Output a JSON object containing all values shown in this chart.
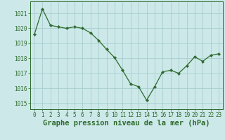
{
  "x": [
    0,
    1,
    2,
    3,
    4,
    5,
    6,
    7,
    8,
    9,
    10,
    11,
    12,
    13,
    14,
    15,
    16,
    17,
    18,
    19,
    20,
    21,
    22,
    23
  ],
  "y": [
    1019.6,
    1021.3,
    1020.2,
    1020.1,
    1020.0,
    1020.1,
    1020.0,
    1019.7,
    1019.2,
    1018.6,
    1018.05,
    1017.2,
    1016.3,
    1016.1,
    1015.2,
    1016.1,
    1017.1,
    1017.2,
    1017.0,
    1017.5,
    1018.1,
    1017.8,
    1018.2,
    1018.3
  ],
  "line_color": "#2d6a2d",
  "marker_color": "#2d6a2d",
  "bg_color": "#cce8e8",
  "grid_color": "#a8cece",
  "axis_color": "#2d6a2d",
  "ylabel_ticks": [
    1015,
    1016,
    1017,
    1018,
    1019,
    1020,
    1021
  ],
  "xlabel": "Graphe pression niveau de la mer (hPa)",
  "ylim": [
    1014.6,
    1021.8
  ],
  "xlim": [
    -0.5,
    23.5
  ],
  "tick_fontsize": 5.5,
  "label_fontsize": 7.5
}
